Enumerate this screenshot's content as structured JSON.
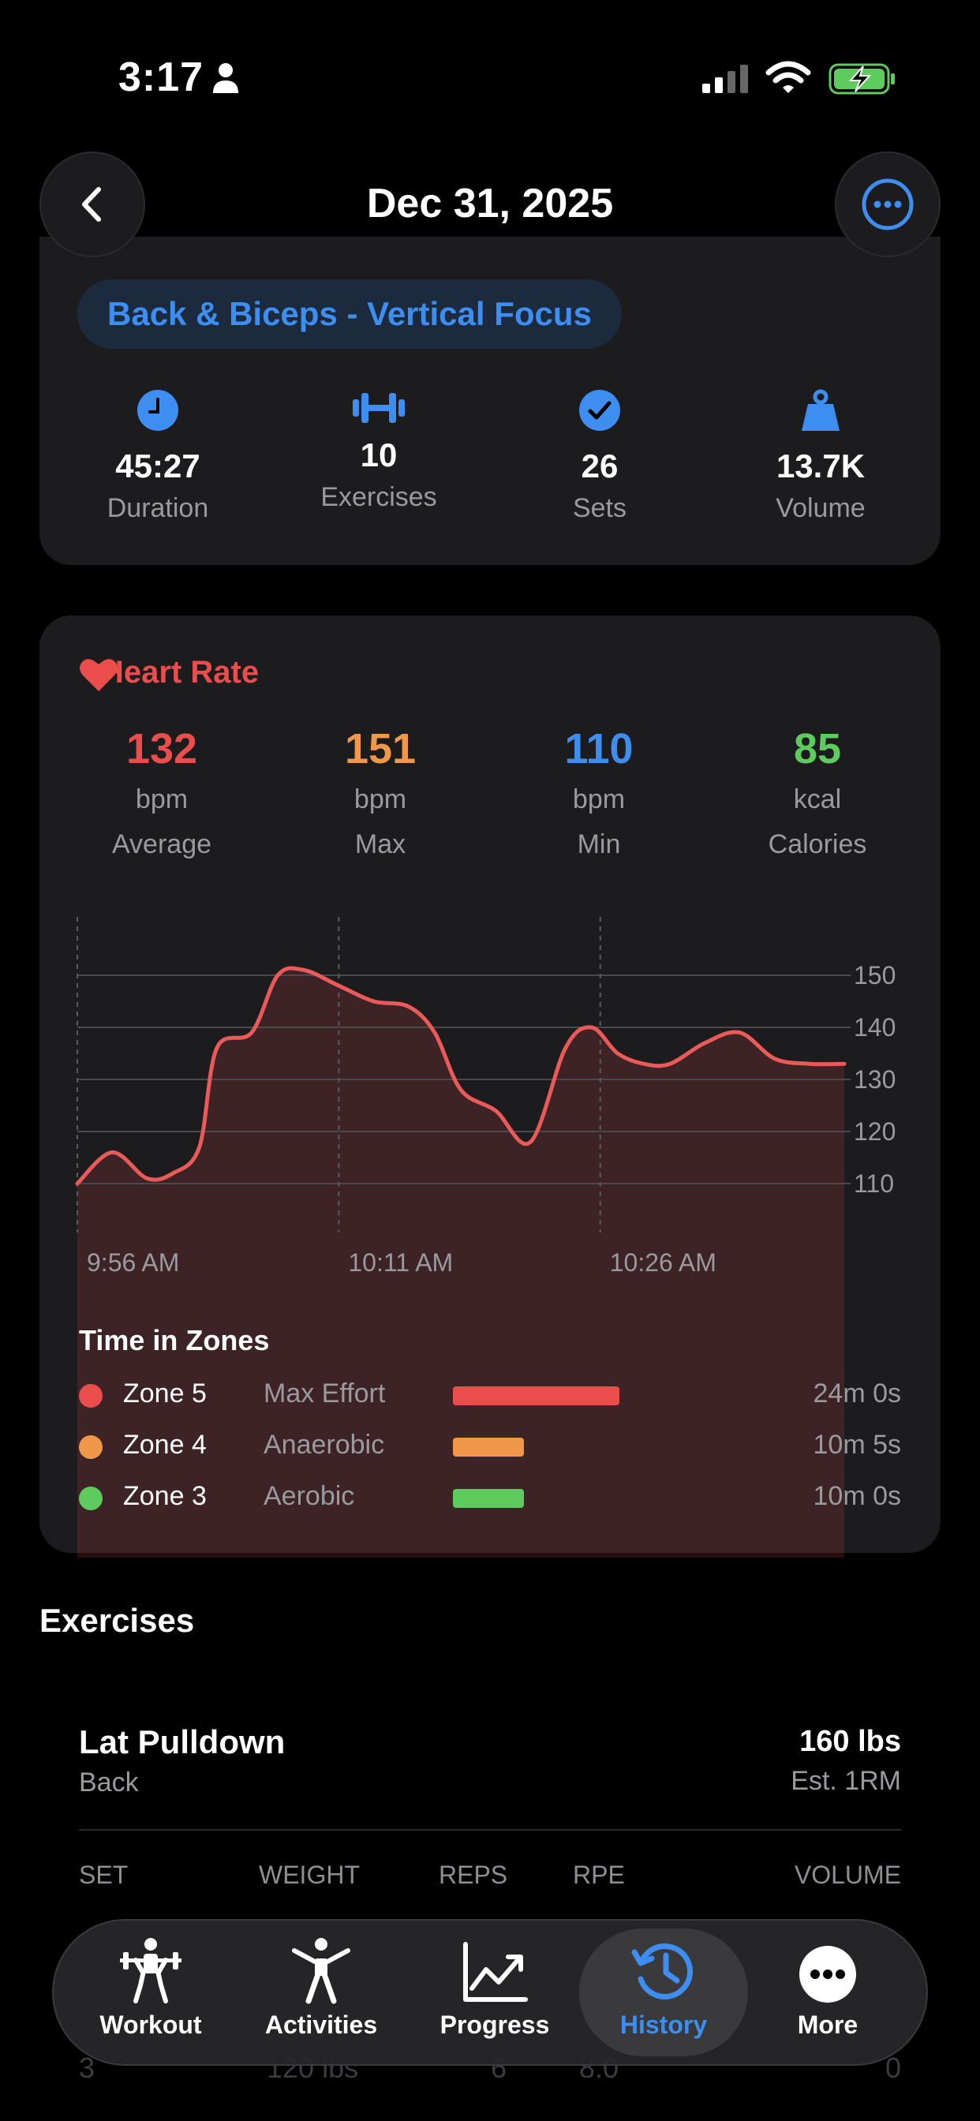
{
  "status_bar": {
    "time": "3:17"
  },
  "header": {
    "title": "Dec 31, 2025"
  },
  "summary": {
    "workout_name": "Back & Biceps - Vertical Focus",
    "stats": [
      {
        "value": "45:27",
        "label": "Duration",
        "icon": "clock-icon"
      },
      {
        "value": "10",
        "label": "Exercises",
        "icon": "dumbbell-icon"
      },
      {
        "value": "26",
        "label": "Sets",
        "icon": "checkmark-icon"
      },
      {
        "value": "13.7K",
        "label": "Volume",
        "icon": "weight-icon"
      }
    ]
  },
  "heart_rate": {
    "title": "Heart Rate",
    "stats": [
      {
        "value": "132",
        "unit": "bpm",
        "label": "Average",
        "color": "#ea4d4b"
      },
      {
        "value": "151",
        "unit": "bpm",
        "label": "Max",
        "color": "#f0984a"
      },
      {
        "value": "110",
        "unit": "bpm",
        "label": "Min",
        "color": "#3d8ef0"
      },
      {
        "value": "85",
        "unit": "kcal",
        "label": "Calories",
        "color": "#5ecb5e"
      }
    ],
    "zones_title": "Time in Zones",
    "zones": [
      {
        "name": "Zone 5",
        "desc": "Max Effort",
        "time": "24m 0s",
        "color": "#ea4d4b",
        "fraction": 0.54
      },
      {
        "name": "Zone 4",
        "desc": "Anaerobic",
        "time": "10m 5s",
        "color": "#f0984a",
        "fraction": 0.23
      },
      {
        "name": "Zone 3",
        "desc": "Aerobic",
        "time": "10m 0s",
        "color": "#5ecb5e",
        "fraction": 0.23
      }
    ]
  },
  "chart_data": {
    "type": "area",
    "x_ticks": [
      "9:56 AM",
      "10:11 AM",
      "10:26 AM"
    ],
    "y_ticks": [
      150,
      140,
      130,
      120,
      110
    ],
    "ylim": [
      105,
      155
    ],
    "x_minutes": [
      0,
      2,
      4,
      5.5,
      7,
      8,
      10,
      11.5,
      13,
      15,
      17,
      19,
      20.5,
      22,
      24,
      26,
      28,
      29.5,
      31,
      32.5,
      34,
      36,
      38,
      40,
      42,
      44
    ],
    "values": [
      110,
      116,
      111,
      112,
      117,
      136,
      139,
      150,
      151,
      148,
      145,
      144,
      139,
      128,
      124,
      118,
      136,
      140,
      135,
      133,
      133,
      137,
      139,
      134,
      133,
      133
    ],
    "line_color": "#ea5a58",
    "grid": true
  },
  "exercises": {
    "section_title": "Exercises",
    "first": {
      "name": "Lat Pulldown",
      "category": "Back",
      "one_rm": "160 lbs",
      "one_rm_label": "Est. 1RM",
      "columns": [
        "SET",
        "WEIGHT",
        "REPS",
        "RPE",
        "VOLUME"
      ],
      "partial_row": {
        "set": "3",
        "weight": "120 lbs",
        "reps": "6",
        "rpe": "8.0",
        "volume": "0"
      }
    }
  },
  "tab_bar": {
    "tabs": [
      {
        "label": "Workout",
        "icon": "barbell-lifter-icon"
      },
      {
        "label": "Activities",
        "icon": "person-stretch-icon"
      },
      {
        "label": "Progress",
        "icon": "trend-chart-icon"
      },
      {
        "label": "History",
        "icon": "history-clock-icon"
      },
      {
        "label": "More",
        "icon": "more-dots-icon"
      }
    ],
    "active": "History"
  }
}
